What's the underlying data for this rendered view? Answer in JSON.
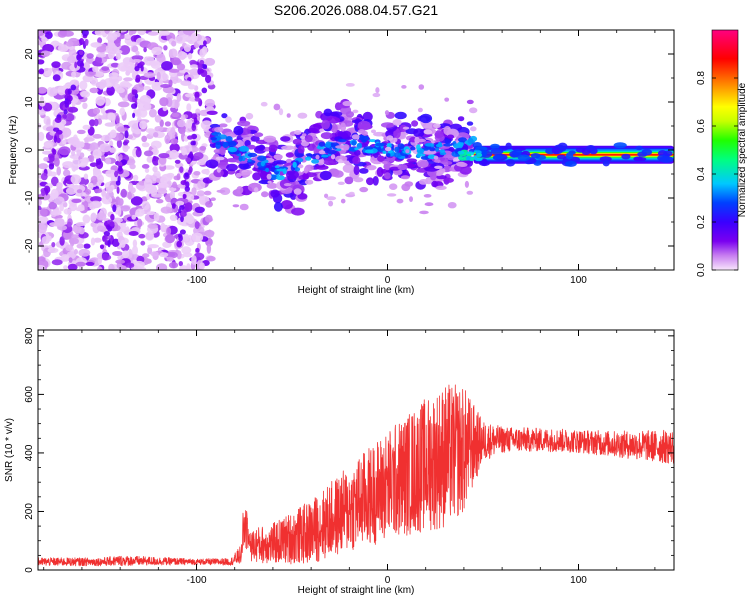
{
  "title": "S206.2026.088.04.57.G21",
  "chart_data": [
    {
      "type": "heatmap",
      "name": "spectrogram",
      "xlabel": "Height of straight line (km)",
      "ylabel": "Frequency (Hz)",
      "xlim": [
        -183,
        150
      ],
      "ylim": [
        -25,
        25
      ],
      "xticks": [
        -100,
        0,
        100
      ],
      "xtick_labels": [
        "-100",
        "0",
        "100"
      ],
      "yticks": [
        -20,
        -10,
        0,
        10,
        20
      ],
      "ytick_labels": [
        "-20",
        "-10",
        "0",
        "10",
        "20"
      ],
      "colorbar": {
        "label": "Normalized spectral amplitude",
        "range": [
          0,
          1
        ],
        "ticks": [
          0.0,
          0.2,
          0.4,
          0.6,
          0.8
        ],
        "tick_labels": [
          "0.0",
          "0.2",
          "0.4",
          "0.6",
          "0.8"
        ],
        "colormap": [
          "#f8e6fb",
          "#c87ef0",
          "#7a00f0",
          "#3a00ff",
          "#0040ff",
          "#00c8ff",
          "#00ff80",
          "#20ff00",
          "#c8ff00",
          "#ffff00",
          "#ff8000",
          "#ff0000",
          "#ff0080"
        ]
      },
      "regions": [
        {
          "description": "diffuse noise",
          "x_range": [
            -183,
            -92
          ],
          "freq_range": [
            -25,
            25
          ],
          "amplitude": 0.1
        },
        {
          "description": "wandering signal",
          "x_range": [
            -92,
            45
          ],
          "freq_center": [
            3,
            -5,
            2,
            -1,
            1
          ],
          "amplitude": 0.25
        },
        {
          "description": "steady carrier",
          "x_range": [
            45,
            150
          ],
          "freq": -1,
          "amplitude": 0.9
        }
      ]
    },
    {
      "type": "line",
      "name": "snr",
      "xlabel": "Height of straight line (km)",
      "ylabel": "SNR (10 * v/v)",
      "xlim": [
        -183,
        150
      ],
      "ylim": [
        0,
        820
      ],
      "xticks": [
        -100,
        0,
        100
      ],
      "xtick_labels": [
        "-100",
        "0",
        "100"
      ],
      "yticks": [
        0,
        200,
        400,
        600,
        800
      ],
      "ytick_labels": [
        "0",
        "200",
        "400",
        "600",
        "800"
      ],
      "color": "#f03030",
      "series_envelope": {
        "x": [
          -183,
          -150,
          -140,
          -100,
          -82,
          -75,
          -70,
          -60,
          -40,
          -20,
          0,
          20,
          30,
          40,
          50,
          60,
          80,
          100,
          120,
          150
        ],
        "baseline": [
          28,
          28,
          32,
          28,
          28,
          60,
          85,
          90,
          130,
          210,
          290,
          360,
          390,
          410,
          440,
          445,
          445,
          440,
          430,
          420
        ],
        "noise": [
          14,
          14,
          18,
          10,
          12,
          40,
          60,
          70,
          110,
          150,
          190,
          230,
          250,
          220,
          70,
          45,
          40,
          40,
          45,
          60
        ]
      }
    }
  ]
}
